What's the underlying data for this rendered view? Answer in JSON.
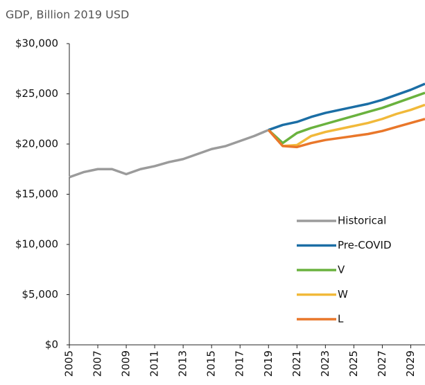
{
  "chart_data": {
    "type": "line",
    "subtitle": "GDP, Billion 2019 USD",
    "x": [
      2005,
      2006,
      2007,
      2008,
      2009,
      2010,
      2011,
      2012,
      2013,
      2014,
      2015,
      2016,
      2017,
      2018,
      2019,
      2020,
      2021,
      2022,
      2023,
      2024,
      2025,
      2026,
      2027,
      2028,
      2029,
      2030
    ],
    "series": [
      {
        "name": "Historical",
        "color": "#9b9b9b",
        "values": [
          16700,
          17200,
          17500,
          17500,
          17000,
          17500,
          17800,
          18200,
          18500,
          19000,
          19500,
          19800,
          20300,
          20800,
          21400,
          null,
          null,
          null,
          null,
          null,
          null,
          null,
          null,
          null,
          null,
          null
        ]
      },
      {
        "name": "Pre-COVID",
        "color": "#1b6ea5",
        "values": [
          null,
          null,
          null,
          null,
          null,
          null,
          null,
          null,
          null,
          null,
          null,
          null,
          null,
          null,
          21400,
          21900,
          22200,
          22700,
          23100,
          23400,
          23700,
          24000,
          24400,
          24900,
          25400,
          26000
        ]
      },
      {
        "name": "V",
        "color": "#6ab23e",
        "values": [
          null,
          null,
          null,
          null,
          null,
          null,
          null,
          null,
          null,
          null,
          null,
          null,
          null,
          null,
          21400,
          20100,
          21100,
          21600,
          22000,
          22400,
          22800,
          23200,
          23600,
          24100,
          24600,
          25100
        ]
      },
      {
        "name": "W",
        "color": "#f1b93a",
        "values": [
          null,
          null,
          null,
          null,
          null,
          null,
          null,
          null,
          null,
          null,
          null,
          null,
          null,
          null,
          21400,
          19800,
          19900,
          20800,
          21200,
          21500,
          21800,
          22100,
          22500,
          23000,
          23400,
          23900
        ]
      },
      {
        "name": "L",
        "color": "#e9772a",
        "values": [
          null,
          null,
          null,
          null,
          null,
          null,
          null,
          null,
          null,
          null,
          null,
          null,
          null,
          null,
          21400,
          19800,
          19700,
          20100,
          20400,
          20600,
          20800,
          21000,
          21300,
          21700,
          22100,
          22500
        ]
      }
    ],
    "xlim": [
      2005,
      2030
    ],
    "xticks": [
      2005,
      2007,
      2009,
      2011,
      2013,
      2015,
      2017,
      2019,
      2021,
      2023,
      2025,
      2027,
      2029
    ],
    "ylim": [
      0,
      30000
    ],
    "yticks": [
      {
        "value": 0,
        "label": "$0"
      },
      {
        "value": 5000,
        "label": "$5,000"
      },
      {
        "value": 10000,
        "label": "$10,000"
      },
      {
        "value": 15000,
        "label": "$15,000"
      },
      {
        "value": 20000,
        "label": "$20,000"
      },
      {
        "value": 25000,
        "label": "$25,000"
      },
      {
        "value": 30000,
        "label": "$30,000"
      }
    ],
    "grid": false,
    "legend": "lower right"
  }
}
